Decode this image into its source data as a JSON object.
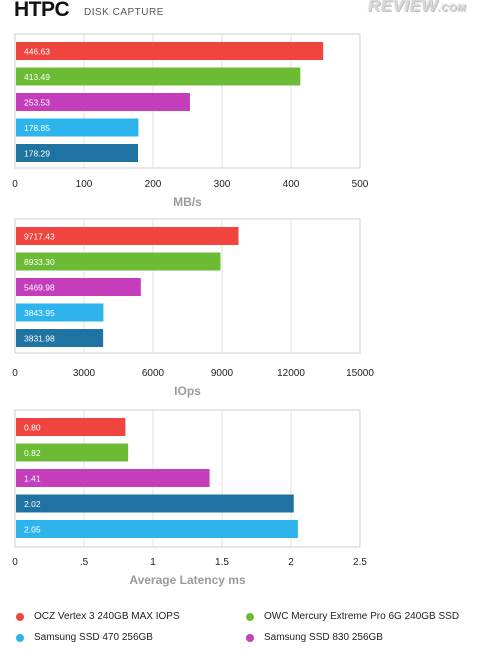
{
  "header": {
    "title": "HTPC",
    "subtitle": "DISK CAPTURE",
    "logo_main": "REVIEW",
    "logo_suffix": ".COM"
  },
  "colors": {
    "red": "#f0453f",
    "green": "#6cbb34",
    "magenta": "#c43ebc",
    "light_blue": "#2eb4ec",
    "dark_blue": "#1f73a3"
  },
  "legend": [
    {
      "label": "OCZ Vertex 3 240GB MAX IOPS",
      "color": "#f0453f"
    },
    {
      "label": "OWC Mercury Extreme Pro 6G 240GB SSD",
      "color": "#6cbb34"
    },
    {
      "label": "Samsung SSD 470 256GB",
      "color": "#2eb4ec"
    },
    {
      "label": "Samsung SSD 830 256GB",
      "color": "#c43ebc"
    }
  ],
  "chart_data": [
    {
      "type": "bar",
      "orientation": "horizontal",
      "xlabel": "MB/s",
      "xlim": [
        0,
        500
      ],
      "ticks": [
        "0",
        "100",
        "200",
        "300",
        "400",
        "500"
      ],
      "bars": [
        {
          "value": 446.63,
          "label": "446.63",
          "color": "#f0453f"
        },
        {
          "value": 413.49,
          "label": "413.49",
          "color": "#6cbb34"
        },
        {
          "value": 253.53,
          "label": "253.53",
          "color": "#c43ebc"
        },
        {
          "value": 178.85,
          "label": "178.85",
          "color": "#2eb4ec"
        },
        {
          "value": 178.29,
          "label": "178.29",
          "color": "#1f73a3"
        }
      ]
    },
    {
      "type": "bar",
      "orientation": "horizontal",
      "xlabel": "IOps",
      "xlim": [
        0,
        15000
      ],
      "ticks": [
        "0",
        "3000",
        "6000",
        "9000",
        "12000",
        "15000"
      ],
      "bars": [
        {
          "value": 9717.43,
          "label": "9717.43",
          "color": "#f0453f"
        },
        {
          "value": 8933.3,
          "label": "8933.30",
          "color": "#6cbb34"
        },
        {
          "value": 5469.98,
          "label": "5469.98",
          "color": "#c43ebc"
        },
        {
          "value": 3843.95,
          "label": "3843.95",
          "color": "#2eb4ec"
        },
        {
          "value": 3831.98,
          "label": "3831.98",
          "color": "#1f73a3"
        }
      ]
    },
    {
      "type": "bar",
      "orientation": "horizontal",
      "xlabel": "Average Latency ms",
      "xlim": [
        0,
        2.5
      ],
      "ticks": [
        "0",
        ".5",
        "1",
        "1.5",
        "2",
        "2.5"
      ],
      "bars": [
        {
          "value": 0.8,
          "label": "0.80",
          "color": "#f0453f"
        },
        {
          "value": 0.82,
          "label": "0.82",
          "color": "#6cbb34"
        },
        {
          "value": 1.41,
          "label": "1.41",
          "color": "#c43ebc"
        },
        {
          "value": 2.02,
          "label": "2.02",
          "color": "#1f73a3"
        },
        {
          "value": 2.05,
          "label": "2.05",
          "color": "#2eb4ec"
        }
      ]
    }
  ]
}
